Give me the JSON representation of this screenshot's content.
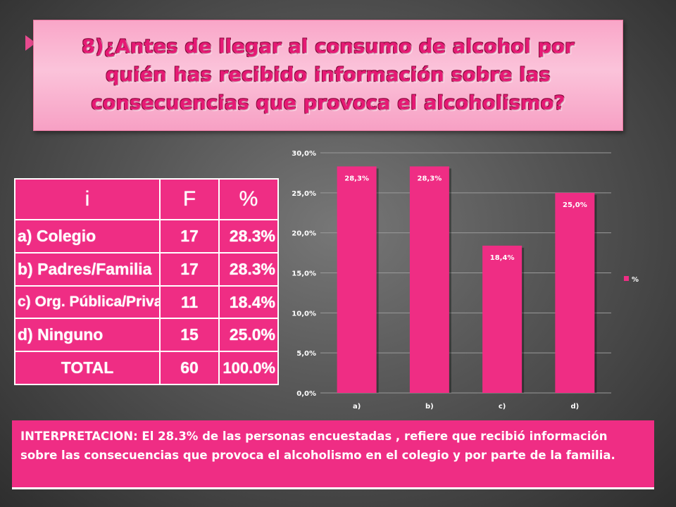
{
  "title": "8)¿Antes de llegar al consumo de alcohol por quién has recibido información sobre las consecuencias que provoca el alcoholismo?",
  "table": {
    "headers": [
      "i",
      "F",
      "%"
    ],
    "rows": [
      {
        "label": "a) Colegio",
        "f": "17",
        "pct": "28.3%"
      },
      {
        "label": "b) Padres/Familia",
        "f": "17",
        "pct": "28.3%"
      },
      {
        "label": "c) Org. Pública/Privada",
        "f": "11",
        "pct": "18.4%"
      },
      {
        "label": "d) Ninguno",
        "f": "15",
        "pct": "25.0%"
      }
    ],
    "total": {
      "label": "TOTAL",
      "f": "60",
      "pct": "100.0%"
    }
  },
  "chart_data": {
    "type": "bar",
    "categories": [
      "a)",
      "b)",
      "c)",
      "d)"
    ],
    "series": [
      {
        "name": "%",
        "values": [
          28.3,
          28.3,
          18.4,
          25.0
        ]
      }
    ],
    "data_labels": [
      "28,3%",
      "28,3%",
      "18,4%",
      "25,0%"
    ],
    "ylim": [
      0,
      30
    ],
    "yticks": [
      "0,0%",
      "5,0%",
      "10,0%",
      "15,0%",
      "20,0%",
      "25,0%",
      "30,0%"
    ],
    "grid": true,
    "legend_position": "right",
    "bar_color": "#ef2d84"
  },
  "interpretation": "INTERPRETACION: El 28.3% de las personas encuestadas , refiere que recibió información sobre las consecuencias que provoca el alcoholismo en el colegio y  por parte de la familia.",
  "colors": {
    "accent": "#ef2d84",
    "title_text": "#e61a75",
    "title_bg": "#fbc3da"
  }
}
